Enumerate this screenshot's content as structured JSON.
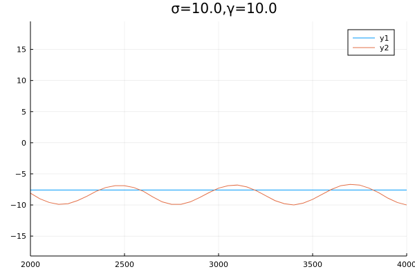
{
  "chart_data": {
    "type": "line",
    "title": "σ=10.0,γ=10.0",
    "xlabel": "",
    "ylabel": "",
    "xlim": [
      2000,
      4000
    ],
    "ylim": [
      -18.2,
      19.5
    ],
    "xticks": [
      2000,
      2500,
      3000,
      3500,
      4000
    ],
    "xtick_labels": [
      "2000",
      "2500",
      "3000",
      "3500",
      "4000"
    ],
    "yticks": [
      -15,
      -10,
      -5,
      0,
      5,
      10,
      15
    ],
    "ytick_labels": [
      "−15",
      "−10",
      "−5",
      "0",
      "5",
      "10",
      "15"
    ],
    "grid": true,
    "legend_position": "top-right",
    "series": [
      {
        "name": "y1",
        "color": "#009AFA",
        "x": [
          2000,
          4000
        ],
        "y": [
          -7.6,
          -7.6
        ]
      },
      {
        "name": "y2",
        "color": "#E36F47",
        "x": [
          2000,
          2050,
          2100,
          2150,
          2200,
          2250,
          2300,
          2350,
          2400,
          2450,
          2500,
          2550,
          2600,
          2650,
          2700,
          2750,
          2800,
          2850,
          2900,
          2950,
          3000,
          3050,
          3100,
          3150,
          3200,
          3250,
          3300,
          3350,
          3400,
          3450,
          3500,
          3550,
          3600,
          3650,
          3700,
          3750,
          3800,
          3850,
          3900,
          3950,
          4000
        ],
        "y": [
          -8.1,
          -9.0,
          -9.6,
          -9.9,
          -9.8,
          -9.3,
          -8.6,
          -7.8,
          -7.2,
          -6.9,
          -6.9,
          -7.2,
          -7.8,
          -8.7,
          -9.5,
          -9.9,
          -9.9,
          -9.5,
          -8.8,
          -8.0,
          -7.3,
          -6.9,
          -6.8,
          -7.1,
          -7.7,
          -8.5,
          -9.3,
          -9.8,
          -10.0,
          -9.7,
          -9.1,
          -8.3,
          -7.5,
          -6.9,
          -6.7,
          -6.8,
          -7.3,
          -8.0,
          -8.9,
          -9.6,
          -10.0
        ]
      }
    ]
  }
}
